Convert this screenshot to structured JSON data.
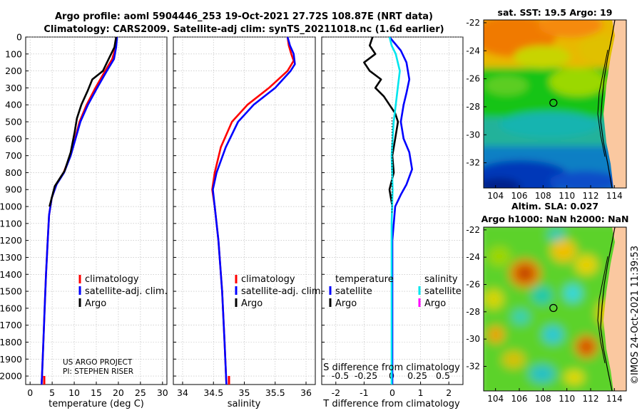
{
  "title": {
    "line1": "Argo profile: aoml 5904446_253 19-Oct-2021 27.72S 108.87E (NRT data)",
    "line2": "Climatology: CARS2009. Satellite-adj clim: synTS_20211018.nc (1.6d earlier)"
  },
  "timestamp": "©IMOS 24-Oct-2021 11:39:53",
  "colors": {
    "climatology": "#ff0000",
    "satellite": "#0000ff",
    "argo": "#000000",
    "sat_salinity": "#00e5ee",
    "argo_salinity": "#ff00ff"
  },
  "depth_ticks": [
    "0",
    "100",
    "200",
    "300",
    "400",
    "500",
    "600",
    "700",
    "800",
    "900",
    "1000",
    "1100",
    "1200",
    "1300",
    "1400",
    "1500",
    "1600",
    "1700",
    "1800",
    "1900",
    "2000"
  ],
  "chart_data": [
    {
      "type": "line",
      "name": "temperature",
      "xlabel": "temperature (deg C)",
      "xlim": [
        -1,
        31
      ],
      "ylim": [
        2050,
        0
      ],
      "xticks": [
        "0",
        "5",
        "10",
        "15",
        "20",
        "25",
        "30"
      ],
      "grid": true,
      "legend": {
        "entries": [
          "climatology",
          "satellite-adj. clim.",
          "Argo"
        ],
        "placement": "lower-right"
      },
      "annotation": {
        "line1": "US ARGO PROJECT",
        "line2": "PI: STEPHEN RISER"
      },
      "series": [
        {
          "name": "climatology",
          "color": "#ff0000",
          "points": [
            [
              19.6,
              0
            ],
            [
              19.4,
              60
            ],
            [
              18.6,
              130
            ],
            [
              17.0,
              200
            ],
            [
              14.8,
              300
            ],
            [
              12.8,
              400
            ],
            [
              11.2,
              500
            ],
            [
              10.2,
              600
            ],
            [
              9.1,
              700
            ],
            [
              7.6,
              800
            ],
            [
              5.9,
              870
            ],
            [
              4.9,
              950
            ],
            [
              4.3,
              1050
            ],
            [
              4.0,
              1200
            ],
            [
              3.6,
              1400
            ],
            [
              3.3,
              1600
            ],
            [
              3.0,
              1800
            ],
            [
              2.7,
              2000
            ],
            [
              2.6,
              2050
            ]
          ]
        },
        {
          "name": "satellite-adj. clim.",
          "color": "#0000ff",
          "points": [
            [
              19.7,
              0
            ],
            [
              19.5,
              60
            ],
            [
              19.0,
              130
            ],
            [
              17.4,
              200
            ],
            [
              15.2,
              300
            ],
            [
              13.1,
              400
            ],
            [
              11.4,
              500
            ],
            [
              10.3,
              600
            ],
            [
              9.2,
              700
            ],
            [
              7.7,
              800
            ],
            [
              6.0,
              870
            ],
            [
              4.9,
              950
            ],
            [
              4.3,
              1050
            ],
            [
              4.0,
              1200
            ],
            [
              3.6,
              1400
            ],
            [
              3.3,
              1600
            ],
            [
              3.0,
              1800
            ],
            [
              2.7,
              2000
            ],
            [
              2.6,
              2050
            ]
          ]
        },
        {
          "name": "Argo",
          "color": "#000000",
          "points": [
            [
              19.5,
              0
            ],
            [
              19.1,
              60
            ],
            [
              17.8,
              130
            ],
            [
              16.5,
              200
            ],
            [
              14.1,
              250
            ],
            [
              13.0,
              320
            ],
            [
              11.6,
              400
            ],
            [
              10.6,
              480
            ],
            [
              10.1,
              560
            ],
            [
              9.2,
              680
            ],
            [
              7.8,
              790
            ],
            [
              5.6,
              880
            ],
            [
              4.4,
              1000
            ]
          ]
        }
      ]
    },
    {
      "type": "line",
      "name": "salinity",
      "xlabel": "salinity",
      "xlim": [
        33.85,
        36.15
      ],
      "ylim": [
        2050,
        0
      ],
      "xticks": [
        "34",
        "34.5",
        "35",
        "35.5",
        "36"
      ],
      "grid": true,
      "legend": {
        "entries": [
          "climatology",
          "satellite-adj. clim.",
          "Argo"
        ],
        "placement": "lower-right"
      },
      "series": [
        {
          "name": "climatology",
          "color": "#ff0000",
          "points": [
            [
              35.7,
              0
            ],
            [
              35.72,
              50
            ],
            [
              35.76,
              100
            ],
            [
              35.8,
              140
            ],
            [
              35.7,
              200
            ],
            [
              35.4,
              300
            ],
            [
              35.05,
              400
            ],
            [
              34.8,
              500
            ],
            [
              34.62,
              650
            ],
            [
              34.52,
              800
            ],
            [
              34.48,
              900
            ],
            [
              34.52,
              1000
            ],
            [
              34.58,
              1200
            ],
            [
              34.64,
              1500
            ],
            [
              34.68,
              1800
            ],
            [
              34.71,
              2050
            ]
          ]
        },
        {
          "name": "satellite-adj. clim.",
          "color": "#0000ff",
          "points": [
            [
              35.7,
              0
            ],
            [
              35.74,
              50
            ],
            [
              35.8,
              100
            ],
            [
              35.82,
              160
            ],
            [
              35.75,
              200
            ],
            [
              35.5,
              300
            ],
            [
              35.15,
              400
            ],
            [
              34.9,
              500
            ],
            [
              34.7,
              650
            ],
            [
              34.55,
              800
            ],
            [
              34.49,
              900
            ],
            [
              34.52,
              1000
            ],
            [
              34.58,
              1200
            ],
            [
              34.64,
              1500
            ],
            [
              34.68,
              1800
            ],
            [
              34.71,
              2050
            ]
          ]
        }
      ]
    },
    {
      "type": "line",
      "name": "difference",
      "xlabel": "T difference from climatology",
      "xlabel_top": "S difference from climatology",
      "xlim": [
        -2.5,
        2.5
      ],
      "ylim": [
        2050,
        0
      ],
      "xticks": [
        "-2",
        "-1",
        "0",
        "1",
        "2"
      ],
      "sticks": [
        "-0.5",
        "-0.25",
        "0",
        "0.25",
        "0.5"
      ],
      "grid": true,
      "legend": {
        "temperature_header": "temperature",
        "salinity_header": "salinity",
        "entries": [
          "satellite",
          "Argo"
        ]
      },
      "series": [
        {
          "name": "T satellite",
          "color": "#0000ff",
          "points": [
            [
              -0.1,
              0
            ],
            [
              0.1,
              40
            ],
            [
              0.3,
              80
            ],
            [
              0.5,
              150
            ],
            [
              0.6,
              250
            ],
            [
              0.5,
              330
            ],
            [
              0.4,
              400
            ],
            [
              0.3,
              500
            ],
            [
              0.4,
              600
            ],
            [
              0.6,
              680
            ],
            [
              0.7,
              780
            ],
            [
              0.5,
              870
            ],
            [
              0.3,
              930
            ],
            [
              0.1,
              1000
            ],
            [
              0.0,
              1200
            ],
            [
              0.0,
              2050
            ]
          ]
        },
        {
          "name": "T Argo",
          "color": "#000000",
          "points": [
            [
              -0.7,
              0
            ],
            [
              -0.8,
              50
            ],
            [
              -0.6,
              100
            ],
            [
              -1.0,
              150
            ],
            [
              -0.8,
              200
            ],
            [
              -0.4,
              250
            ],
            [
              -0.6,
              300
            ],
            [
              -0.3,
              350
            ],
            [
              -0.1,
              400
            ],
            [
              0.1,
              450
            ],
            [
              0.2,
              500
            ],
            [
              0.1,
              600
            ],
            [
              0.0,
              700
            ],
            [
              0.05,
              800
            ],
            [
              -0.1,
              900
            ],
            [
              0.0,
              1000
            ]
          ]
        },
        {
          "name": "S satellite",
          "color": "#00e5ee",
          "points": [
            [
              -0.02,
              0
            ],
            [
              0.0,
              50
            ],
            [
              0.04,
              100
            ],
            [
              0.08,
              200
            ],
            [
              0.06,
              300
            ],
            [
              0.04,
              400
            ],
            [
              0.02,
              500
            ],
            [
              0.0,
              700
            ],
            [
              0.01,
              900
            ],
            [
              0.0,
              1100
            ],
            [
              0.0,
              2050
            ]
          ]
        }
      ]
    },
    {
      "type": "heatmap",
      "name": "sst",
      "title": "sat. SST: 19.5 Argo: 19",
      "xticks": [
        "104",
        "106",
        "108",
        "110",
        "112",
        "114"
      ],
      "yticks": [
        "-22",
        "-24",
        "-26",
        "-28",
        "-30",
        "-32"
      ],
      "xlim": [
        103,
        115
      ],
      "ylim": [
        -33.8,
        -21.8
      ],
      "marker": {
        "lon": 108.87,
        "lat": -27.72
      }
    },
    {
      "type": "heatmap",
      "name": "sla",
      "title_line1": "Altim. SLA: 0.027",
      "title_line2": "Argo h1000: NaN h2000: NaN",
      "xticks": [
        "104",
        "106",
        "108",
        "110",
        "112",
        "114"
      ],
      "yticks": [
        "-22",
        "-24",
        "-26",
        "-28",
        "-30",
        "-32"
      ],
      "xlim": [
        103,
        115
      ],
      "ylim": [
        -33.8,
        -21.8
      ],
      "marker": {
        "lon": 108.87,
        "lat": -27.72
      }
    }
  ]
}
